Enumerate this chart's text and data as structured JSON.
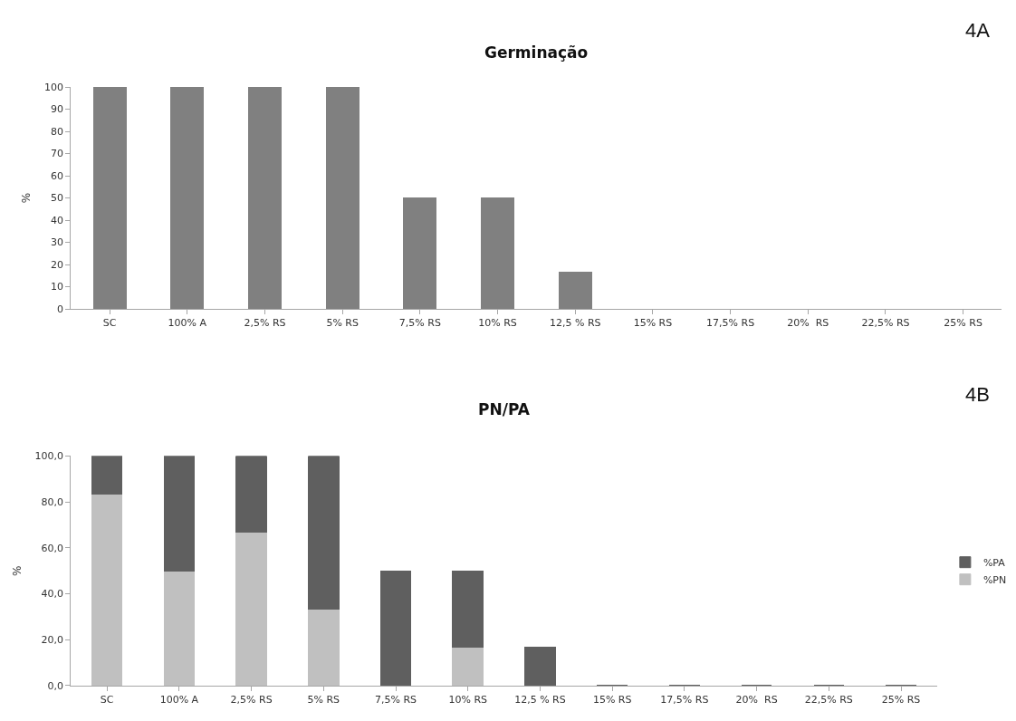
{
  "chart_data": [
    {
      "type": "bar",
      "title": "Germinação",
      "ylabel": "%",
      "annotations": [
        "4A"
      ],
      "categories": [
        "SC",
        "100% A",
        "2,5% RS",
        "5% RS",
        "7,5% RS",
        "10% RS",
        "12,5 % RS",
        "15% RS",
        "17,5% RS",
        "20%  RS",
        "22,5% RS",
        "25% RS"
      ],
      "values": [
        100,
        100,
        100,
        100,
        50,
        50,
        16.7,
        0,
        0,
        0,
        0,
        0
      ],
      "color": "#808080",
      "ylim": [
        0,
        100
      ],
      "yticks": [
        0,
        10,
        20,
        30,
        40,
        50,
        60,
        70,
        80,
        90,
        100
      ],
      "legend": false
    },
    {
      "type": "bar",
      "title": "PN/PA",
      "ylabel": "%",
      "annotations": [
        "4B"
      ],
      "stacked": true,
      "categories": [
        "SC",
        "100% A",
        "2,5% RS",
        "5% RS",
        "7,5% RS",
        "10% RS",
        "12,5 % RS",
        "15% RS",
        "17,5% RS",
        "20%  RS",
        "22,5% RS",
        "25% RS"
      ],
      "series": [
        {
          "name": "%PN",
          "color": "#c0c0c0",
          "values": [
            83.3,
            50,
            66.7,
            33.3,
            0,
            16.7,
            0,
            0,
            0,
            0,
            0,
            0
          ]
        },
        {
          "name": "%PA",
          "color": "#5f5f5f",
          "values": [
            16.7,
            50,
            33.3,
            66.7,
            50,
            33.3,
            16.7,
            0,
            0,
            0,
            0,
            0
          ]
        }
      ],
      "ylim": [
        0,
        100
      ],
      "yticks": [
        {
          "value": 0,
          "label": "0,0"
        },
        {
          "value": 20,
          "label": "20,0"
        },
        {
          "value": 40,
          "label": "40,0"
        },
        {
          "value": 60,
          "label": "60,0"
        },
        {
          "value": 80,
          "label": "80,0"
        },
        {
          "value": 100,
          "label": "100,0"
        }
      ],
      "legend": "right"
    }
  ]
}
